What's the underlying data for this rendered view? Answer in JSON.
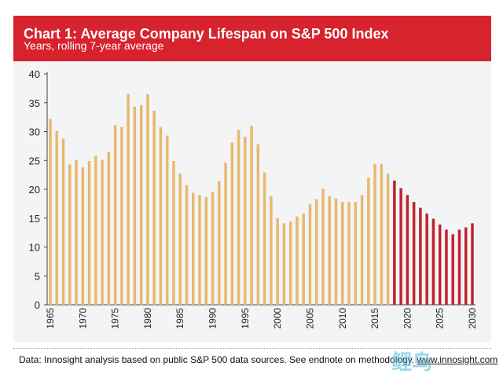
{
  "header": {
    "title": "Chart 1: Average Company Lifespan on S&P 500 Index",
    "subtitle": "Years, rolling 7-year average"
  },
  "footnote": {
    "text": "Data: Innosight analysis based on public S&P 500 data sources. See endnote on methodology.",
    "link": "www.innosight.com"
  },
  "watermark": "鲤鸟",
  "colors": {
    "header_bg": "#d6232d",
    "historical_bar": "#e8b86c",
    "forecast_bar": "#c0222b",
    "panel_bg": "#f2f4f6"
  },
  "chart_data": {
    "type": "bar",
    "title": "Chart 1: Average Company Lifespan on S&P 500 Index",
    "subtitle": "Years, rolling 7-year average",
    "xlabel": "",
    "ylabel": "",
    "ylim": [
      0,
      40
    ],
    "yticks": [
      0,
      5,
      10,
      15,
      20,
      25,
      30,
      35,
      40
    ],
    "xticks": [
      1965,
      1970,
      1975,
      1980,
      1985,
      1990,
      1995,
      2000,
      2005,
      2010,
      2015,
      2020,
      2025,
      2030
    ],
    "grid": false,
    "legend": "none",
    "series": [
      {
        "x": [
          1965,
          1966,
          1967,
          1968,
          1969,
          1970,
          1971,
          1972,
          1973,
          1974,
          1975,
          1976,
          1977,
          1978,
          1979,
          1980,
          1981,
          1982,
          1983,
          1984,
          1985,
          1986,
          1987,
          1988,
          1989,
          1990,
          1991,
          1992,
          1993,
          1994,
          1995,
          1996,
          1997,
          1998,
          1999,
          2000,
          2001,
          2002,
          2003,
          2004,
          2005,
          2006,
          2007,
          2008,
          2009,
          2010,
          2011,
          2012,
          2013,
          2014,
          2015,
          2016,
          2017
        ],
        "values": [
          32.2,
          30.1,
          28.8,
          24.3,
          25.1,
          23.8,
          24.9,
          25.8,
          25.1,
          26.5,
          31.1,
          30.8,
          36.5,
          34.3,
          34.6,
          36.5,
          33.6,
          30.8,
          29.3,
          24.9,
          22.7,
          20.7,
          19.4,
          19.0,
          18.7,
          19.5,
          21.4,
          24.6,
          28.1,
          30.3,
          29.1,
          31.0,
          27.8,
          22.9,
          18.8,
          15.0,
          14.1,
          14.4,
          15.3,
          15.8,
          17.4,
          18.3,
          20.1,
          18.8,
          18.4,
          17.8,
          17.8,
          17.8,
          19.0,
          22.0,
          24.4,
          24.4,
          22.7
        ],
        "color": "#e8b86c"
      },
      {
        "x": [
          2018,
          2019,
          2020,
          2021,
          2022,
          2023,
          2024,
          2025,
          2026,
          2027,
          2028,
          2029,
          2030
        ],
        "values": [
          21.5,
          20.2,
          19.0,
          17.8,
          16.8,
          15.8,
          14.9,
          13.9,
          13.0,
          12.2,
          13.0,
          13.4,
          14.1
        ],
        "color": "#c0222b"
      }
    ]
  }
}
